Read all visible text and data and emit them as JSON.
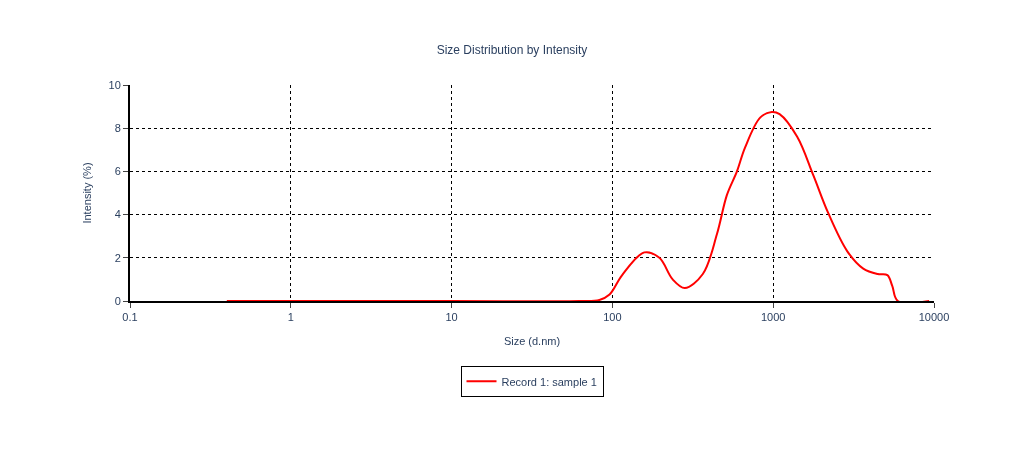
{
  "chart_data": {
    "type": "line",
    "title": "Size Distribution by Intensity",
    "xlabel": "Size (d.nm)",
    "ylabel": "Intensity (%)",
    "log": "x",
    "xlim": [
      0.1,
      10000
    ],
    "xticks": [
      0.1,
      1,
      10,
      100,
      1000,
      10000
    ],
    "ylim": [
      0,
      10
    ],
    "yticks": [
      0,
      2,
      4,
      6,
      8,
      10
    ],
    "grid": true,
    "legend": "bottom",
    "line_style": "solid",
    "series": [
      {
        "name": "Record 1: sample 1",
        "color": "#ff0000",
        "x": [
          0.4,
          10,
          62,
          83,
          96,
          115,
          158,
          196,
          237,
          282,
          365,
          447,
          515,
          595,
          668,
          832,
          980,
          1096,
          1410,
          1780,
          2190,
          2890,
          3630,
          4470,
          5130,
          5500,
          5960,
          9330
        ],
        "values": [
          0,
          0,
          0,
          0.05,
          0.3,
          1.2,
          2.25,
          2.0,
          1.0,
          0.6,
          1.25,
          3.1,
          4.9,
          6.0,
          7.1,
          8.5,
          8.75,
          8.65,
          7.6,
          5.8,
          4.1,
          2.3,
          1.5,
          1.25,
          1.2,
          0.7,
          0,
          0
        ]
      }
    ]
  }
}
